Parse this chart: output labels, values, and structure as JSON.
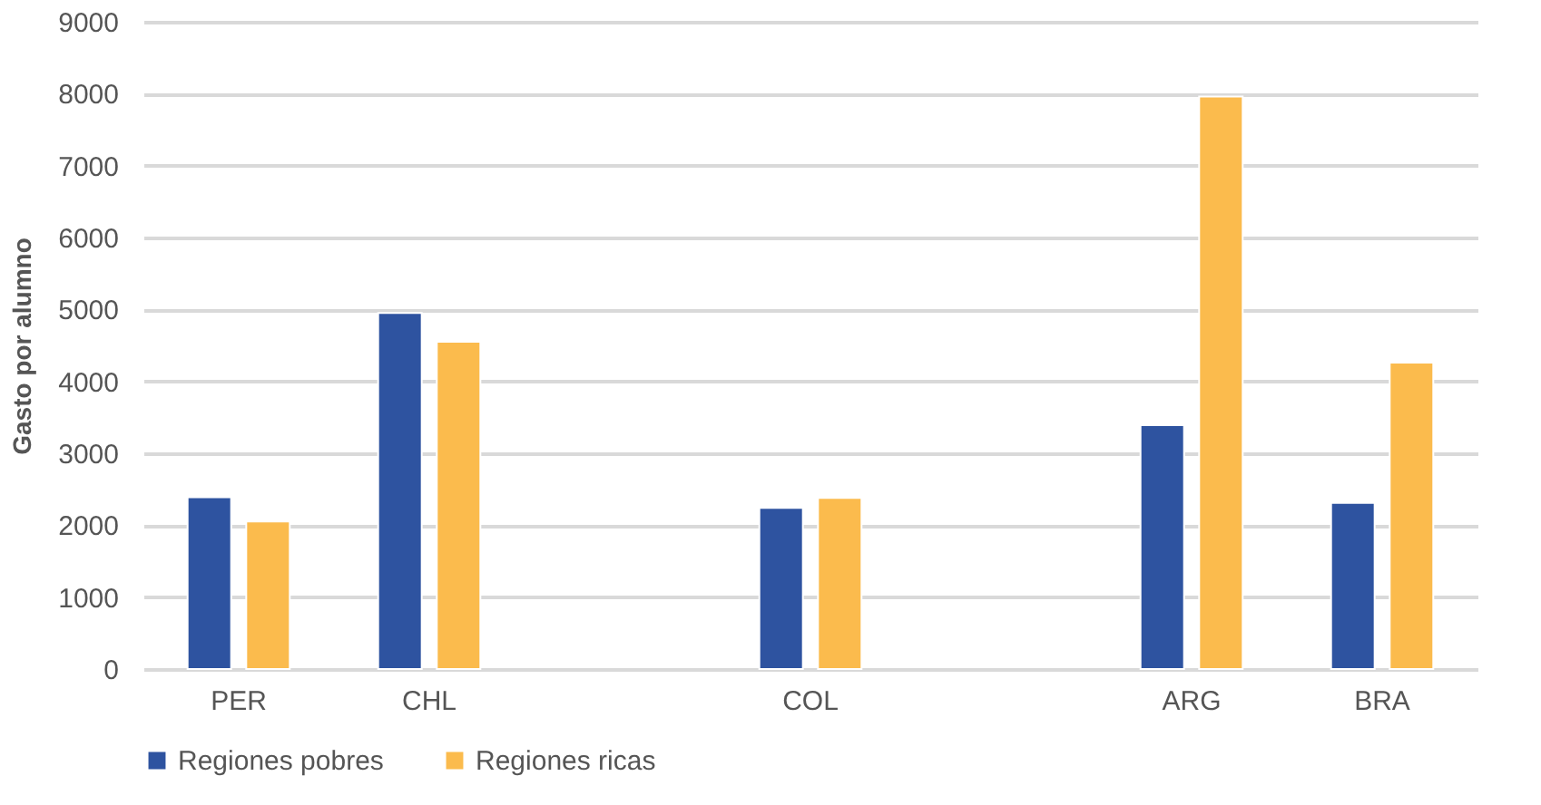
{
  "chart_data": {
    "type": "bar",
    "ylabel": "Gasto por alumno",
    "categories": [
      "PER",
      "CHL",
      null,
      "COL",
      null,
      "ARG",
      "BRA"
    ],
    "series": [
      {
        "name": "Regiones pobres",
        "color": "#2e53a0",
        "values": [
          2390,
          4950,
          null,
          2240,
          null,
          3390,
          2310
        ]
      },
      {
        "name": "Regiones ricas",
        "color": "#fbbb4d",
        "values": [
          2050,
          4550,
          null,
          2380,
          null,
          7960,
          4260
        ]
      }
    ],
    "ylim": [
      0,
      9000
    ],
    "yticks": [
      0,
      1000,
      2000,
      3000,
      4000,
      5000,
      6000,
      7000,
      8000,
      9000
    ],
    "grid": "y",
    "legend": "bottom"
  }
}
